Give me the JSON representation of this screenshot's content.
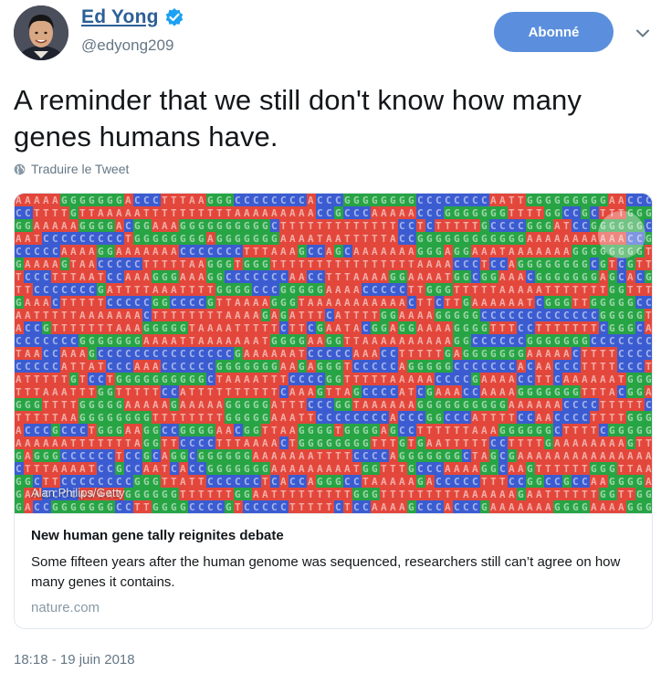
{
  "author": {
    "display_name": "Ed Yong",
    "handle": "@edyong209",
    "verified": true,
    "avatar_icon": "user-avatar"
  },
  "follow_button": {
    "label": "Abonné",
    "color": "#5b8fdd"
  },
  "menu": {
    "icon": "chevron-down-icon"
  },
  "tweet": {
    "text": "A reminder that we still don't know how many genes humans have.",
    "translate_label": "Traduire le Tweet",
    "translate_icon": "globe-icon"
  },
  "card": {
    "image": {
      "description_icon": "dna-sequence-image",
      "credit": "Alan Philips/Getty",
      "colors": {
        "A": "#e3473b",
        "C": "#3b5cd1",
        "G": "#27a444",
        "T": "#e3473b"
      }
    },
    "title": "New human gene tally reignites debate",
    "description": "Some fifteen years after the human genome was sequenced, researchers still can’t agree on how many genes it contains.",
    "domain": "nature.com"
  },
  "timestamp": "18:18 - 19 juin 2018",
  "colors": {
    "link": "#2c5f96",
    "muted": "#657786",
    "border": "#e1e8ed",
    "verified": "#1da1f2"
  }
}
